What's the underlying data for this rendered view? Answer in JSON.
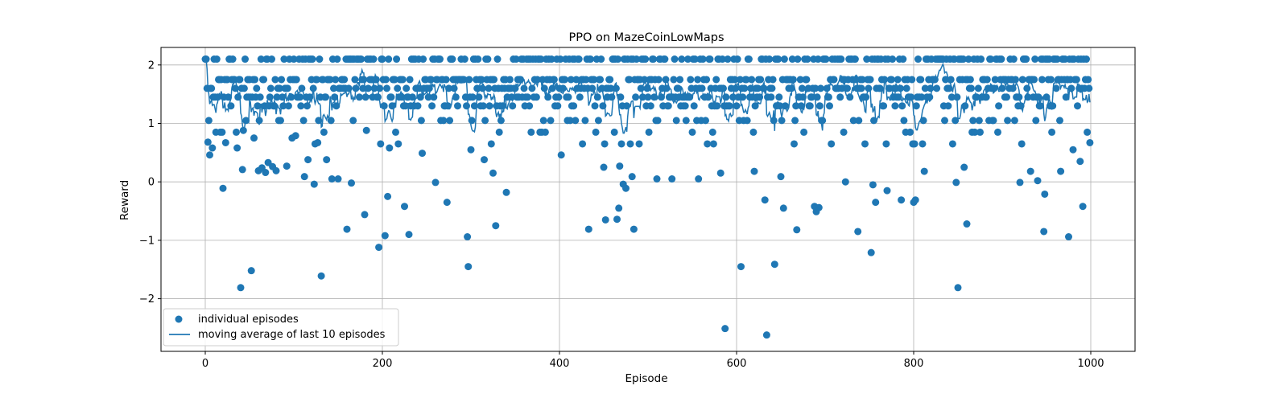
{
  "chart_data": {
    "type": "scatter",
    "title": "PPO on MazeCoinLowMaps",
    "xlabel": "Episode",
    "ylabel": "Reward",
    "xlim": [
      -50,
      1050
    ],
    "ylim": [
      -2.9,
      2.3
    ],
    "xticks": [
      0,
      200,
      400,
      600,
      800,
      1000
    ],
    "yticks": [
      -2,
      -1,
      0,
      1,
      2
    ],
    "grid": true,
    "legend_position": "lower-left",
    "n_episodes": 1000,
    "series": [
      {
        "name": "individual episodes",
        "kind": "scatter",
        "color": "#1f77b4",
        "high_values": [
          2.1,
          1.75,
          1.6,
          1.45,
          1.3,
          1.05,
          0.85,
          0.65
        ],
        "outliers": [
          {
            "x": 3,
            "y": 0.68
          },
          {
            "x": 5,
            "y": 0.46
          },
          {
            "x": 8,
            "y": 0.58
          },
          {
            "x": 20,
            "y": -0.11
          },
          {
            "x": 23,
            "y": 0.67
          },
          {
            "x": 36,
            "y": 0.58
          },
          {
            "x": 40,
            "y": -1.81
          },
          {
            "x": 42,
            "y": 0.21
          },
          {
            "x": 43,
            "y": 0.88
          },
          {
            "x": 52,
            "y": -1.52
          },
          {
            "x": 55,
            "y": 0.75
          },
          {
            "x": 60,
            "y": 0.19
          },
          {
            "x": 64,
            "y": 0.24
          },
          {
            "x": 68,
            "y": 0.16
          },
          {
            "x": 71,
            "y": 0.33
          },
          {
            "x": 76,
            "y": 0.26
          },
          {
            "x": 80,
            "y": 0.19
          },
          {
            "x": 92,
            "y": 0.27
          },
          {
            "x": 98,
            "y": 0.75
          },
          {
            "x": 102,
            "y": 0.79
          },
          {
            "x": 112,
            "y": 0.09
          },
          {
            "x": 116,
            "y": 0.38
          },
          {
            "x": 123,
            "y": -0.04
          },
          {
            "x": 127,
            "y": 0.67
          },
          {
            "x": 131,
            "y": -1.61
          },
          {
            "x": 137,
            "y": 0.38
          },
          {
            "x": 143,
            "y": 0.05
          },
          {
            "x": 150,
            "y": 0.05
          },
          {
            "x": 160,
            "y": -0.81
          },
          {
            "x": 165,
            "y": -0.02
          },
          {
            "x": 180,
            "y": -0.56
          },
          {
            "x": 182,
            "y": 0.88
          },
          {
            "x": 196,
            "y": -1.12
          },
          {
            "x": 203,
            "y": -0.92
          },
          {
            "x": 206,
            "y": -0.25
          },
          {
            "x": 208,
            "y": 0.58
          },
          {
            "x": 225,
            "y": -0.42
          },
          {
            "x": 230,
            "y": -0.9
          },
          {
            "x": 245,
            "y": 0.49
          },
          {
            "x": 260,
            "y": -0.01
          },
          {
            "x": 273,
            "y": -0.35
          },
          {
            "x": 296,
            "y": -0.94
          },
          {
            "x": 297,
            "y": -1.45
          },
          {
            "x": 300,
            "y": 0.55
          },
          {
            "x": 315,
            "y": 0.38
          },
          {
            "x": 325,
            "y": 0.15
          },
          {
            "x": 328,
            "y": -0.75
          },
          {
            "x": 340,
            "y": -0.18
          },
          {
            "x": 402,
            "y": 0.46
          },
          {
            "x": 433,
            "y": -0.81
          },
          {
            "x": 450,
            "y": 0.25
          },
          {
            "x": 452,
            "y": -0.65
          },
          {
            "x": 465,
            "y": -0.64
          },
          {
            "x": 467,
            "y": -0.45
          },
          {
            "x": 468,
            "y": 0.27
          },
          {
            "x": 472,
            "y": -0.04
          },
          {
            "x": 475,
            "y": -0.11
          },
          {
            "x": 482,
            "y": 0.09
          },
          {
            "x": 484,
            "y": -0.81
          },
          {
            "x": 510,
            "y": 0.05
          },
          {
            "x": 527,
            "y": 0.05
          },
          {
            "x": 557,
            "y": 0.05
          },
          {
            "x": 582,
            "y": 0.15
          },
          {
            "x": 587,
            "y": -2.51
          },
          {
            "x": 605,
            "y": -1.45
          },
          {
            "x": 620,
            "y": 0.18
          },
          {
            "x": 632,
            "y": -0.31
          },
          {
            "x": 634,
            "y": -2.62
          },
          {
            "x": 643,
            "y": -1.41
          },
          {
            "x": 650,
            "y": 0.09
          },
          {
            "x": 653,
            "y": -0.45
          },
          {
            "x": 668,
            "y": -0.82
          },
          {
            "x": 688,
            "y": -0.42
          },
          {
            "x": 690,
            "y": -0.51
          },
          {
            "x": 693,
            "y": -0.44
          },
          {
            "x": 723,
            "y": 0.0
          },
          {
            "x": 737,
            "y": -0.85
          },
          {
            "x": 752,
            "y": -1.21
          },
          {
            "x": 754,
            "y": -0.05
          },
          {
            "x": 757,
            "y": -0.35
          },
          {
            "x": 770,
            "y": -0.15
          },
          {
            "x": 786,
            "y": -0.31
          },
          {
            "x": 800,
            "y": -0.35
          },
          {
            "x": 802,
            "y": -0.31
          },
          {
            "x": 812,
            "y": 0.18
          },
          {
            "x": 848,
            "y": -0.01
          },
          {
            "x": 850,
            "y": -1.81
          },
          {
            "x": 857,
            "y": 0.25
          },
          {
            "x": 860,
            "y": -0.72
          },
          {
            "x": 920,
            "y": -0.01
          },
          {
            "x": 932,
            "y": 0.18
          },
          {
            "x": 940,
            "y": 0.02
          },
          {
            "x": 947,
            "y": -0.85
          },
          {
            "x": 948,
            "y": -0.21
          },
          {
            "x": 966,
            "y": 0.18
          },
          {
            "x": 975,
            "y": -0.94
          },
          {
            "x": 980,
            "y": 0.55
          },
          {
            "x": 988,
            "y": 0.35
          },
          {
            "x": 991,
            "y": -0.42
          },
          {
            "x": 999,
            "y": 0.67
          }
        ]
      },
      {
        "name": "moving average of last 10 episodes",
        "kind": "line",
        "color": "#1f77b4",
        "window": 10
      }
    ]
  }
}
